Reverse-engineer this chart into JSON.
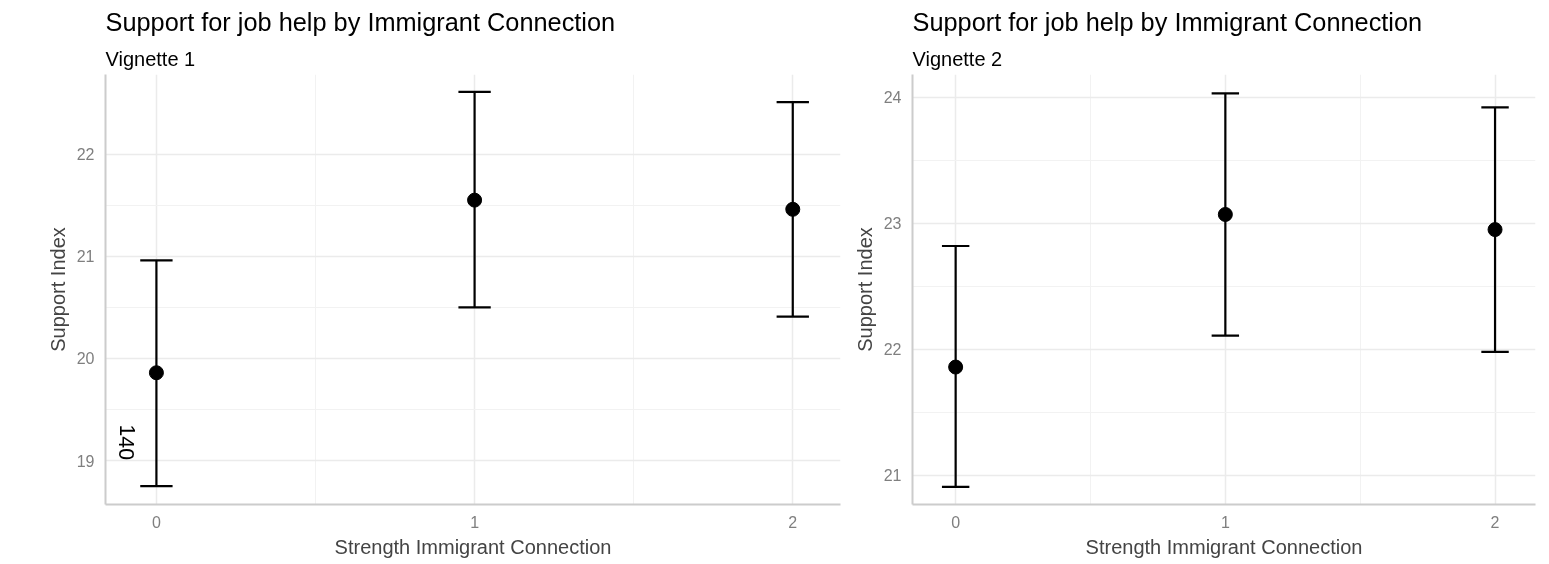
{
  "chart_data": [
    {
      "type": "scatter",
      "title": "Support for job help by Immigrant Connection",
      "subtitle": "Vignette 1",
      "xlabel": "Strength Immigrant Connection",
      "ylabel": "Support Index",
      "x": [
        0,
        1,
        2
      ],
      "xlim": [
        -0.16,
        2.15
      ],
      "xticks": [
        0,
        1,
        2
      ],
      "ylim": [
        18.57,
        22.78
      ],
      "yticks": [
        19,
        20,
        21,
        22
      ],
      "grid": true,
      "marker": "circle",
      "annotations": [
        "140"
      ],
      "series": [
        {
          "color": "#000000",
          "values": [
            19.86,
            21.55,
            21.46
          ],
          "errors": [
            [
              18.75,
              20.96
            ],
            [
              20.5,
              22.61
            ],
            [
              20.41,
              22.51
            ]
          ]
        }
      ]
    },
    {
      "type": "scatter",
      "title": "Support for job help by Immigrant Connection",
      "subtitle": "Vignette 2",
      "xlabel": "Strength Immigrant Connection",
      "ylabel": "Support Index",
      "x": [
        0,
        1,
        2
      ],
      "xlim": [
        -0.16,
        2.15
      ],
      "xticks": [
        0,
        1,
        2
      ],
      "ylim": [
        20.77,
        24.18
      ],
      "yticks": [
        21,
        22,
        23,
        24
      ],
      "grid": true,
      "marker": "circle",
      "series": [
        {
          "color": "#000000",
          "values": [
            21.86,
            23.07,
            22.95
          ],
          "errors": [
            [
              20.91,
              22.82
            ],
            [
              22.11,
              24.03
            ],
            [
              21.98,
              23.92
            ]
          ]
        }
      ]
    }
  ]
}
